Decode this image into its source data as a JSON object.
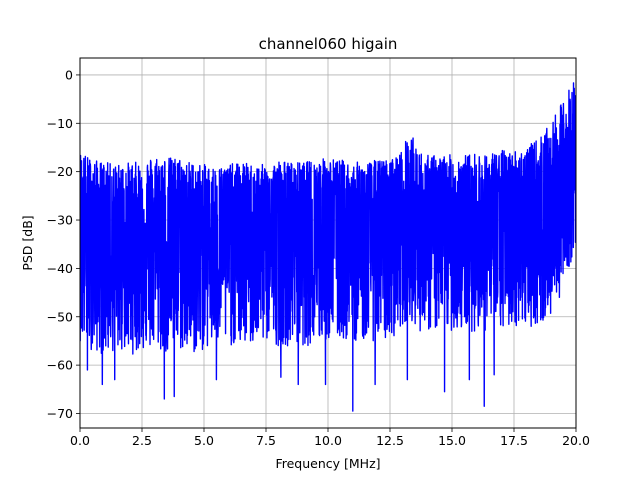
{
  "chart_data": {
    "type": "line",
    "title": "channel060 higain",
    "xlabel": "Frequency [MHz]",
    "ylabel": "PSD [dB]",
    "xlim": [
      0,
      20
    ],
    "ylim": [
      -73,
      3.5
    ],
    "xticks": [
      0,
      2.5,
      5,
      7.5,
      10,
      12.5,
      15,
      17.5,
      20
    ],
    "xtick_labels": [
      "0.0",
      "2.5",
      "5.0",
      "7.5",
      "10.0",
      "12.5",
      "15.0",
      "17.5",
      "20.0"
    ],
    "yticks": [
      0,
      -10,
      -20,
      -30,
      -40,
      -50,
      -60,
      -70
    ],
    "ytick_labels": [
      "0",
      "−10",
      "−20",
      "−30",
      "−40",
      "−50",
      "−60",
      "−70"
    ],
    "grid": true,
    "series": [
      {
        "color": "#0000ff",
        "envelope": {
          "x": [
            0,
            0.5,
            1,
            1.5,
            2,
            2.5,
            3,
            3.5,
            4,
            4.5,
            5,
            5.5,
            6,
            6.5,
            7,
            7.5,
            8,
            8.5,
            9,
            9.5,
            10,
            10.5,
            11,
            11.5,
            12,
            12.5,
            13,
            13.3,
            13.6,
            14,
            14.5,
            15,
            15.5,
            16,
            16.5,
            17,
            17.5,
            18,
            18.5,
            19,
            19.5,
            20
          ],
          "upper": [
            -15.5,
            -17.5,
            -18,
            -18.5,
            -18,
            -18,
            -16.5,
            -17,
            -17,
            -18,
            -18.5,
            -19,
            -18.5,
            -18,
            -18.5,
            -18.5,
            -17.5,
            -18,
            -18,
            -17.5,
            -17,
            -17.5,
            -18,
            -18,
            -17.5,
            -17.5,
            -15.5,
            -11,
            -15.5,
            -16.5,
            -16.5,
            -16.5,
            -16.5,
            -16,
            -16,
            -15.5,
            -15.5,
            -15,
            -13,
            -10,
            -5,
            0
          ],
          "center": [
            -32,
            -33,
            -33,
            -32,
            -33,
            -33,
            -32,
            -32,
            -33,
            -33,
            -32,
            -32,
            -32,
            -32,
            -32,
            -33,
            -32,
            -32,
            -32,
            -32,
            -32,
            -32,
            -32,
            -32,
            -32,
            -31,
            -31,
            -29,
            -31,
            -31,
            -31,
            -31,
            -31,
            -31,
            -31,
            -31,
            -30,
            -30,
            -30,
            -29,
            -26,
            -22
          ],
          "lower": [
            -55,
            -57,
            -58,
            -57,
            -58,
            -57,
            -57,
            -58,
            -57,
            -58,
            -57,
            -56,
            -56,
            -56,
            -56,
            -55,
            -56,
            -56,
            -56,
            -56,
            -55,
            -55,
            -55,
            -55,
            -55,
            -55,
            -52,
            -50,
            -53,
            -53,
            -53,
            -53,
            -53,
            -53,
            -53,
            -53,
            -52,
            -52,
            -52,
            -50,
            -44,
            -35
          ]
        },
        "dips": [
          {
            "x": 0.3,
            "y": -61
          },
          {
            "x": 0.9,
            "y": -64
          },
          {
            "x": 1.4,
            "y": -63
          },
          {
            "x": 3.4,
            "y": -67
          },
          {
            "x": 3.8,
            "y": -66.5
          },
          {
            "x": 5.5,
            "y": -63
          },
          {
            "x": 8.1,
            "y": -62.5
          },
          {
            "x": 8.8,
            "y": -64
          },
          {
            "x": 9.9,
            "y": -64
          },
          {
            "x": 11.0,
            "y": -69.5
          },
          {
            "x": 11.9,
            "y": -64
          },
          {
            "x": 13.2,
            "y": -63
          },
          {
            "x": 14.7,
            "y": -65.5
          },
          {
            "x": 15.7,
            "y": -63
          },
          {
            "x": 16.3,
            "y": -68.5
          },
          {
            "x": 16.7,
            "y": -62
          }
        ]
      }
    ]
  }
}
